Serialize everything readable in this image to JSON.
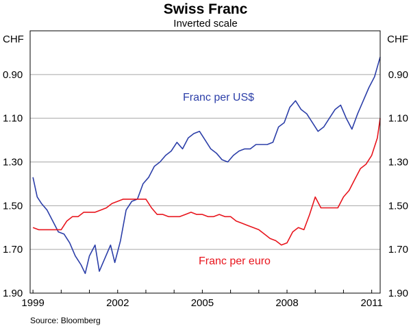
{
  "chart_data": {
    "type": "line",
    "title": "Swiss Franc",
    "subtitle": "Inverted scale",
    "y_unit_left": "CHF",
    "y_unit_right": "CHF",
    "y_inverted": true,
    "ylim": [
      0.7,
      1.9
    ],
    "yticks": [
      "0.90",
      "1.10",
      "1.30",
      "1.50",
      "1.70",
      "1.90"
    ],
    "ytick_values": [
      0.9,
      1.1,
      1.3,
      1.5,
      1.7,
      1.9
    ],
    "xlim": [
      1998.9,
      2011.3
    ],
    "xticks": [
      "1999",
      "2002",
      "2005",
      "2008",
      "2011"
    ],
    "xtick_values": [
      1999,
      2002,
      2005,
      2008,
      2011
    ],
    "grid": "horizontal",
    "source": "Source: Bloomberg",
    "series": [
      {
        "name": "Franc per US$",
        "color": "#2b3ea8",
        "x": [
          1999.0,
          1999.15,
          1999.3,
          1999.5,
          1999.7,
          1999.9,
          2000.1,
          2000.3,
          2000.5,
          2000.7,
          2000.85,
          2001.0,
          2001.2,
          2001.35,
          2001.55,
          2001.75,
          2001.9,
          2002.1,
          2002.3,
          2002.5,
          2002.7,
          2002.9,
          2003.1,
          2003.3,
          2003.5,
          2003.7,
          2003.9,
          2004.1,
          2004.3,
          2004.5,
          2004.7,
          2004.9,
          2005.1,
          2005.3,
          2005.5,
          2005.7,
          2005.9,
          2006.1,
          2006.3,
          2006.5,
          2006.7,
          2006.9,
          2007.1,
          2007.3,
          2007.5,
          2007.7,
          2007.9,
          2008.1,
          2008.3,
          2008.5,
          2008.7,
          2008.9,
          2009.1,
          2009.3,
          2009.5,
          2009.7,
          2009.9,
          2010.1,
          2010.3,
          2010.5,
          2010.7,
          2010.9,
          2011.1,
          2011.3
        ],
        "y": [
          1.37,
          1.46,
          1.49,
          1.52,
          1.57,
          1.62,
          1.63,
          1.67,
          1.73,
          1.77,
          1.81,
          1.73,
          1.68,
          1.8,
          1.74,
          1.68,
          1.76,
          1.66,
          1.52,
          1.48,
          1.47,
          1.4,
          1.37,
          1.32,
          1.3,
          1.27,
          1.25,
          1.21,
          1.24,
          1.19,
          1.17,
          1.16,
          1.2,
          1.24,
          1.26,
          1.29,
          1.3,
          1.27,
          1.25,
          1.24,
          1.24,
          1.22,
          1.22,
          1.22,
          1.21,
          1.14,
          1.12,
          1.05,
          1.02,
          1.06,
          1.08,
          1.12,
          1.16,
          1.14,
          1.1,
          1.06,
          1.04,
          1.1,
          1.15,
          1.08,
          1.02,
          0.96,
          0.91,
          0.82
        ]
      },
      {
        "name": "Franc per euro",
        "color": "#e8141c",
        "x": [
          1999.0,
          1999.2,
          1999.4,
          1999.6,
          1999.8,
          2000.0,
          2000.2,
          2000.4,
          2000.6,
          2000.8,
          2001.0,
          2001.2,
          2001.4,
          2001.6,
          2001.8,
          2002.0,
          2002.2,
          2002.4,
          2002.6,
          2002.8,
          2003.0,
          2003.2,
          2003.4,
          2003.6,
          2003.8,
          2004.0,
          2004.2,
          2004.4,
          2004.6,
          2004.8,
          2005.0,
          2005.2,
          2005.4,
          2005.6,
          2005.8,
          2006.0,
          2006.2,
          2006.4,
          2006.6,
          2006.8,
          2007.0,
          2007.2,
          2007.4,
          2007.6,
          2007.8,
          2008.0,
          2008.2,
          2008.4,
          2008.6,
          2008.8,
          2009.0,
          2009.2,
          2009.4,
          2009.6,
          2009.8,
          2010.0,
          2010.2,
          2010.4,
          2010.6,
          2010.8,
          2011.0,
          2011.2,
          2011.3
        ],
        "y": [
          1.6,
          1.61,
          1.61,
          1.61,
          1.61,
          1.61,
          1.57,
          1.55,
          1.55,
          1.53,
          1.53,
          1.53,
          1.52,
          1.51,
          1.49,
          1.48,
          1.47,
          1.47,
          1.47,
          1.47,
          1.47,
          1.51,
          1.54,
          1.54,
          1.55,
          1.55,
          1.55,
          1.54,
          1.53,
          1.54,
          1.54,
          1.55,
          1.55,
          1.54,
          1.55,
          1.55,
          1.57,
          1.58,
          1.59,
          1.6,
          1.61,
          1.63,
          1.65,
          1.66,
          1.68,
          1.67,
          1.62,
          1.6,
          1.61,
          1.54,
          1.46,
          1.51,
          1.51,
          1.51,
          1.51,
          1.46,
          1.43,
          1.38,
          1.33,
          1.31,
          1.27,
          1.19,
          1.1
        ]
      }
    ]
  }
}
